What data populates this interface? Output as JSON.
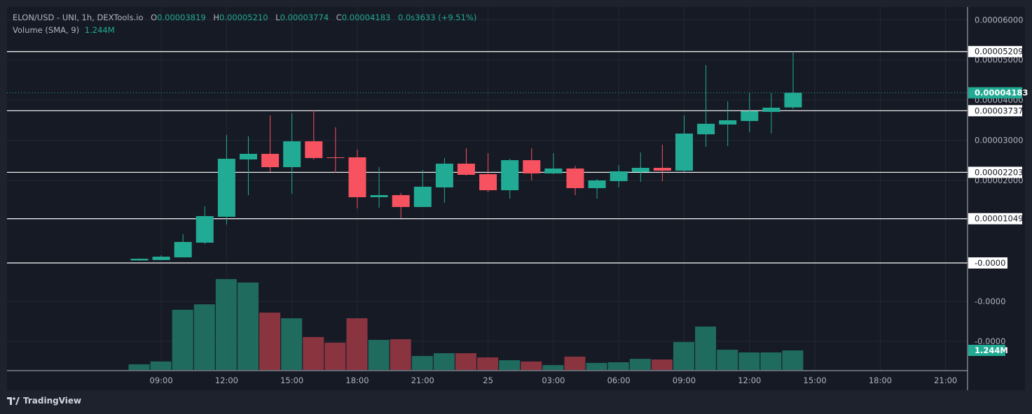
{
  "header": {
    "symbol": "ELON/USD - UNI, 1h, DEXTools.io",
    "open_label": "O",
    "open": "0.00003819",
    "high_label": "H",
    "high": "0.00005210",
    "low_label": "L",
    "low": "0.00003774",
    "close_label": "C",
    "close": "0.00004183",
    "change": "0.0s3633 (+9.51%)",
    "volume_label": "Volume (SMA, 9)",
    "volume_value": "1.244M"
  },
  "brand": {
    "name": "TradingView",
    "logo": "tradingview-logo"
  },
  "colors": {
    "up": "#22ab94",
    "down": "#f7525f",
    "up_volume": "#1f6b5e",
    "down_volume": "#8a3440",
    "background": "#161a25",
    "grid": "#242833",
    "hline": "#ffffff"
  },
  "price_axis": {
    "ticks": [
      "0.00006000",
      "0.00005000",
      "0.00004000",
      "0.00003000",
      "0.00002000"
    ],
    "tick_values": [
      6e-05,
      5e-05,
      4e-05,
      3e-05,
      2e-05
    ],
    "horizontal_lines": [
      {
        "value": 5.209e-05,
        "label": "0.00005209"
      },
      {
        "value": 3.737e-05,
        "label": "0.00003737"
      },
      {
        "value": 2.203e-05,
        "label": "0.00002203"
      },
      {
        "value": 1.049e-05,
        "label": "0.00001049"
      },
      {
        "value": -1e-07,
        "label": "-0.0000"
      }
    ],
    "last_price": {
      "value": 4.183e-05,
      "label": "0.00004183"
    },
    "volume_ticks": [
      "-0.0000",
      "-0.0000"
    ],
    "volume_sma_label": "1.244M"
  },
  "time_axis": {
    "ticks": [
      {
        "hour_index": 1,
        "label": "09:00"
      },
      {
        "hour_index": 4,
        "label": "12:00"
      },
      {
        "hour_index": 7,
        "label": "15:00"
      },
      {
        "hour_index": 10,
        "label": "18:00"
      },
      {
        "hour_index": 13,
        "label": "21:00"
      },
      {
        "hour_index": 16,
        "label": "25"
      },
      {
        "hour_index": 19,
        "label": "03:00"
      },
      {
        "hour_index": 22,
        "label": "06:00"
      },
      {
        "hour_index": 25,
        "label": "09:00"
      },
      {
        "hour_index": 28,
        "label": "12:00"
      },
      {
        "hour_index": 31,
        "label": "15:00"
      },
      {
        "hour_index": 34,
        "label": "18:00"
      },
      {
        "hour_index": 37,
        "label": "21:00"
      }
    ]
  },
  "chart_data": {
    "type": "candlestick",
    "interval": "1h",
    "x_start": "08:00",
    "volume_sma": 1.244,
    "volume_unit": "M",
    "candles": [
      {
        "time": "08:00",
        "o": 1e-07,
        "h": 6e-07,
        "l": 5e-08,
        "c": 5.2e-07,
        "v": 0.36
      },
      {
        "time": "09:00",
        "o": 2e-07,
        "h": 1.39e-06,
        "l": 1.5e-07,
        "c": 1.04e-06,
        "v": 0.54
      },
      {
        "time": "10:00",
        "o": 8.7e-07,
        "h": 6.61e-06,
        "l": 8.7e-07,
        "c": 4.7e-06,
        "v": 3.84
      },
      {
        "time": "11:00",
        "o": 4.53e-06,
        "h": 1.358e-05,
        "l": 4.18e-06,
        "c": 1.114e-05,
        "v": 4.19
      },
      {
        "time": "12:00",
        "o": 1.097e-05,
        "h": 3.133e-05,
        "l": 9.05e-06,
        "c": 2.541e-05,
        "v": 5.8
      },
      {
        "time": "13:00",
        "o": 2.524e-05,
        "h": 3.098e-05,
        "l": 1.636e-05,
        "c": 2.663e-05,
        "v": 5.58
      },
      {
        "time": "14:00",
        "o": 2.663e-05,
        "h": 3.62e-05,
        "l": 2.211e-05,
        "c": 2.332e-05,
        "v": 3.66
      },
      {
        "time": "15:00",
        "o": 2.332e-05,
        "h": 3.673e-05,
        "l": 1.671e-05,
        "c": 2.976e-05,
        "v": 3.3
      },
      {
        "time": "16:00",
        "o": 2.976e-05,
        "h": 3.742e-05,
        "l": 2.524e-05,
        "c": 2.559e-05,
        "v": 2.1
      },
      {
        "time": "17:00",
        "o": 2.576e-05,
        "h": 3.325e-05,
        "l": 2.193e-05,
        "c": 2.559e-05,
        "v": 1.74
      },
      {
        "time": "18:00",
        "o": 2.576e-05,
        "h": 2.768e-05,
        "l": 1.305e-05,
        "c": 1.584e-05,
        "v": 3.3
      },
      {
        "time": "19:00",
        "o": 1.584e-05,
        "h": 2.332e-05,
        "l": 1.323e-05,
        "c": 1.636e-05,
        "v": 1.92
      },
      {
        "time": "20:00",
        "o": 1.636e-05,
        "h": 1.688e-05,
        "l": 1.062e-05,
        "c": 1.34e-05,
        "v": 1.96
      },
      {
        "time": "21:00",
        "o": 1.34e-05,
        "h": 2.263e-05,
        "l": 1.34e-05,
        "c": 1.845e-05,
        "v": 0.89
      },
      {
        "time": "22:00",
        "o": 1.828e-05,
        "h": 2.559e-05,
        "l": 1.445e-05,
        "c": 2.419e-05,
        "v": 1.07
      },
      {
        "time": "23:00",
        "o": 2.419e-05,
        "h": 2.802e-05,
        "l": 2.124e-05,
        "c": 2.141e-05,
        "v": 1.07
      },
      {
        "time": "00:00",
        "o": 2.158e-05,
        "h": 2.681e-05,
        "l": 1.706e-05,
        "c": 1.758e-05,
        "v": 0.8
      },
      {
        "time": "01:00",
        "o": 1.758e-05,
        "h": 2.541e-05,
        "l": 1.549e-05,
        "c": 2.506e-05,
        "v": 0.62
      },
      {
        "time": "02:00",
        "o": 2.506e-05,
        "h": 2.802e-05,
        "l": 2.002e-05,
        "c": 2.176e-05,
        "v": 0.54
      },
      {
        "time": "03:00",
        "o": 2.176e-05,
        "h": 2.681e-05,
        "l": 2.158e-05,
        "c": 2.298e-05,
        "v": 0.31
      },
      {
        "time": "04:00",
        "o": 2.298e-05,
        "h": 2.367e-05,
        "l": 1.636e-05,
        "c": 1.81e-05,
        "v": 0.85
      },
      {
        "time": "05:00",
        "o": 1.81e-05,
        "h": 2.037e-05,
        "l": 1.549e-05,
        "c": 2.002e-05,
        "v": 0.45
      },
      {
        "time": "06:00",
        "o": 1.984e-05,
        "h": 2.385e-05,
        "l": 1.828e-05,
        "c": 2.228e-05,
        "v": 0.49
      },
      {
        "time": "07:00",
        "o": 2.211e-05,
        "h": 2.698e-05,
        "l": 1.967e-05,
        "c": 2.315e-05,
        "v": 0.71
      },
      {
        "time": "08:00",
        "o": 2.315e-05,
        "h": 2.889e-05,
        "l": 1.984e-05,
        "c": 2.245e-05,
        "v": 0.67
      },
      {
        "time": "09:00",
        "o": 2.245e-05,
        "h": 3.62e-05,
        "l": 2.211e-05,
        "c": 3.168e-05,
        "v": 1.78
      },
      {
        "time": "10:00",
        "o": 3.15e-05,
        "h": 4.874e-05,
        "l": 2.837e-05,
        "c": 3.412e-05,
        "v": 2.77
      },
      {
        "time": "11:00",
        "o": 3.394e-05,
        "h": 3.969e-05,
        "l": 2.855e-05,
        "c": 3.499e-05,
        "v": 1.29
      },
      {
        "time": "12:00",
        "o": 3.481e-05,
        "h": 4.177e-05,
        "l": 3.203e-05,
        "c": 3.725e-05,
        "v": 1.12
      },
      {
        "time": "13:00",
        "o": 3.707e-05,
        "h": 4.177e-05,
        "l": 3.168e-05,
        "c": 3.812e-05,
        "v": 1.12
      },
      {
        "time": "14:00",
        "o": 3.819e-05,
        "h": 5.21e-05,
        "l": 3.774e-05,
        "c": 4.183e-05,
        "v": 1.244
      }
    ]
  }
}
